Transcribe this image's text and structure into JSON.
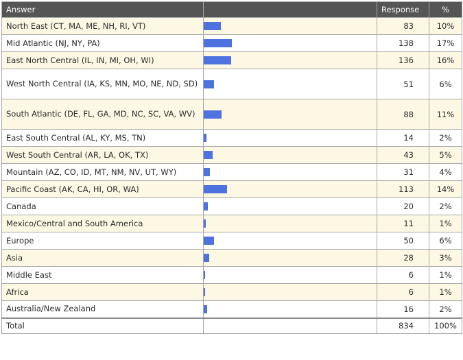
{
  "header": {
    "answer": "Answer",
    "response": "Response",
    "percent": "%"
  },
  "colors": {
    "header_bg": "#555555",
    "row_alt": "#fdf8e3",
    "bar": "#4e73df"
  },
  "chart_data": {
    "type": "table",
    "bar_max_percent": 17,
    "rows": [
      {
        "answer": "North East (CT, MA, ME, NH, RI, VT)",
        "response": "83",
        "percent": "10%",
        "value": 83
      },
      {
        "answer": "Mid Atlantic (NJ, NY, PA)",
        "response": "138",
        "percent": "17%",
        "value": 138
      },
      {
        "answer": "East North Central (IL, IN, MI, OH, WI)",
        "response": "136",
        "percent": "16%",
        "value": 136
      },
      {
        "answer": "West North Central (IA, KS, MN, MO, NE, ND, SD)",
        "response": "51",
        "percent": "6%",
        "value": 51
      },
      {
        "answer": "South Atlantic (DE, FL, GA, MD, NC, SC, VA, WV)",
        "response": "88",
        "percent": "11%",
        "value": 88
      },
      {
        "answer": "East South Central (AL, KY, MS, TN)",
        "response": "14",
        "percent": "2%",
        "value": 14
      },
      {
        "answer": "West South Central (AR, LA, OK, TX)",
        "response": "43",
        "percent": "5%",
        "value": 43
      },
      {
        "answer": "Mountain (AZ, CO, ID, MT, NM, NV, UT, WY)",
        "response": "31",
        "percent": "4%",
        "value": 31
      },
      {
        "answer": "Pacific Coast (AK, CA, HI, OR, WA)",
        "response": "113",
        "percent": "14%",
        "value": 113
      },
      {
        "answer": "Canada",
        "response": "20",
        "percent": "2%",
        "value": 20
      },
      {
        "answer": "Mexico/Central and South America",
        "response": "11",
        "percent": "1%",
        "value": 11
      },
      {
        "answer": "Europe",
        "response": "50",
        "percent": "6%",
        "value": 50
      },
      {
        "answer": "Asia",
        "response": "28",
        "percent": "3%",
        "value": 28
      },
      {
        "answer": "Middle East",
        "response": "6",
        "percent": "1%",
        "value": 6
      },
      {
        "answer": "Africa",
        "response": "6",
        "percent": "1%",
        "value": 6
      },
      {
        "answer": "Australia/New Zealand",
        "response": "16",
        "percent": "2%",
        "value": 16
      }
    ],
    "total": {
      "answer": "Total",
      "response": "834",
      "percent": "100%"
    }
  }
}
